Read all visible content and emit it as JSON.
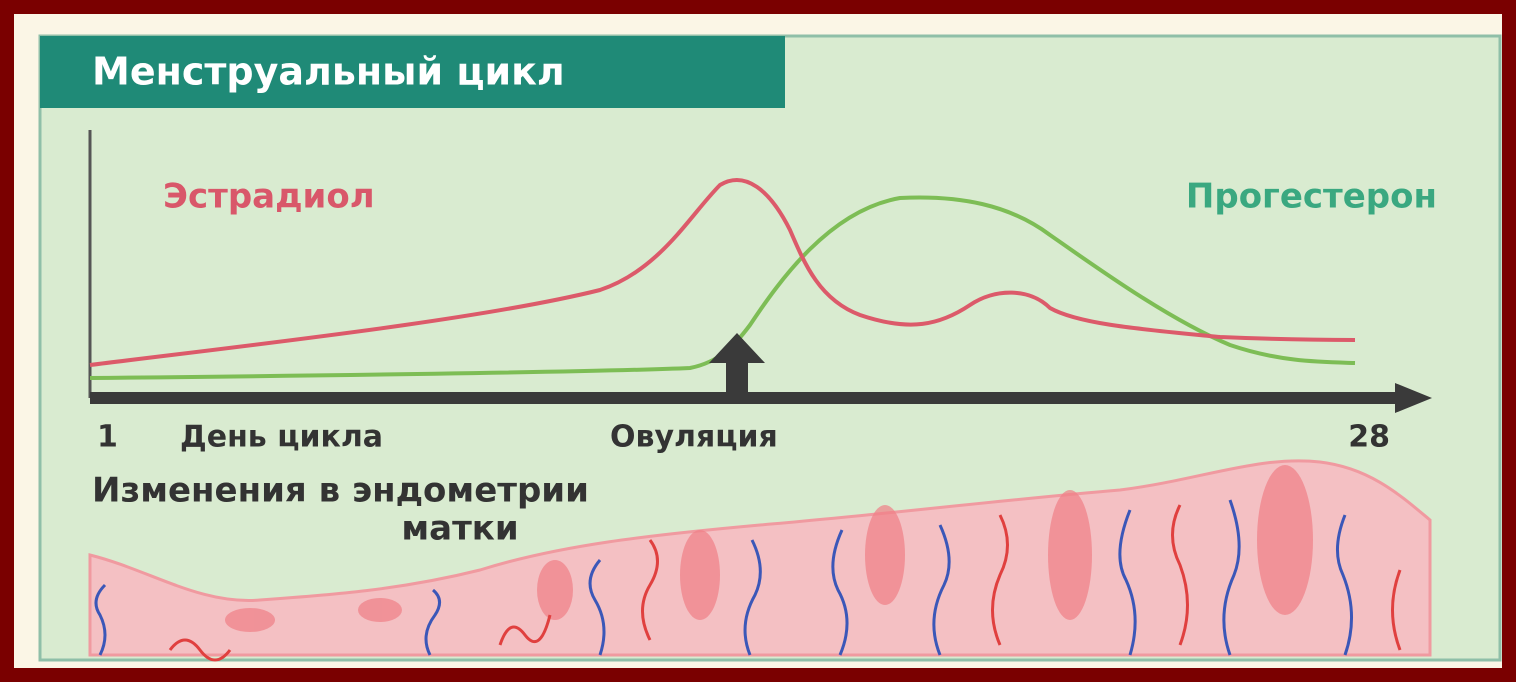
{
  "header": {
    "title": "Менструальный цикл"
  },
  "curves": {
    "estradiol": "Эстрадиол",
    "progesterone": "Прогестерон"
  },
  "axis": {
    "start": "1",
    "label": "День цикла",
    "ovulation": "Овуляция",
    "end": "28"
  },
  "endometrium": {
    "lines": [
      "Изменения в эндометрии",
      "матки"
    ]
  }
}
